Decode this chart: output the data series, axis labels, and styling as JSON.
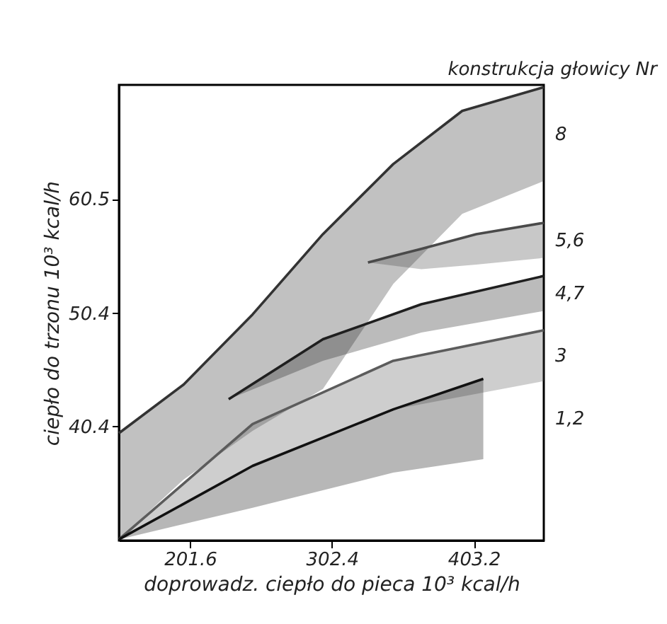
{
  "chart_data": {
    "type": "line",
    "grid": false,
    "legend": false,
    "xlabel": "doprowadz. ciepło do pieca 10³ kcal/h",
    "ylabel": "ciepło do trzonu 10³ kcal/h",
    "legend_title": "konstrukcja głowicy Nr",
    "xlim": [
      151,
      453
    ],
    "ylim": [
      30.3,
      70.6
    ],
    "xticks": [
      201.6,
      302.4,
      403.2
    ],
    "yticks": [
      40.4,
      50.4,
      60.5
    ],
    "series": [
      {
        "name": "8",
        "color": "#333333",
        "x": [
          151,
          197,
          246,
          296,
          346,
          395,
          453
        ],
        "values": [
          39.8,
          44.1,
          50.3,
          57.4,
          63.6,
          68.3,
          70.4
        ],
        "upper": [
          39.8,
          44.1,
          50.3,
          57.4,
          63.6,
          68.3,
          70.4
        ],
        "lower": [
          30.4,
          35.7,
          40.0,
          43.7,
          53.0,
          59.2,
          62.1
        ]
      },
      {
        "name": "5,6",
        "color": "#4a4a4a",
        "x": [
          328,
          366,
          405,
          453
        ],
        "values": [
          54.9,
          56.1,
          57.4,
          58.4
        ],
        "upper": [
          54.9,
          56.1,
          57.4,
          58.4
        ],
        "lower": [
          54.9,
          54.3,
          54.7,
          55.3
        ]
      },
      {
        "name": "4,7",
        "color": "#1f1f1f",
        "x": [
          229,
          296,
          366,
          453
        ],
        "values": [
          42.8,
          48.1,
          51.2,
          53.7
        ],
        "upper": [
          42.8,
          48.1,
          51.2,
          53.7
        ],
        "lower": [
          42.8,
          46.2,
          48.7,
          50.6
        ]
      },
      {
        "name": "3",
        "color": "#5c5c5c",
        "x": [
          151,
          246,
          346,
          453
        ],
        "values": [
          30.4,
          40.6,
          46.2,
          48.9
        ],
        "upper": [
          30.4,
          40.6,
          46.2,
          48.9
        ],
        "lower": [
          30.4,
          36.9,
          41.9,
          44.4
        ]
      },
      {
        "name": "1,2",
        "color": "#111111",
        "x": [
          151,
          246,
          346,
          410
        ],
        "values": [
          30.4,
          36.9,
          41.9,
          44.6
        ],
        "upper": [
          30.4,
          36.9,
          41.9,
          44.6
        ],
        "lower": [
          30.4,
          33.2,
          36.3,
          37.5
        ]
      }
    ]
  }
}
